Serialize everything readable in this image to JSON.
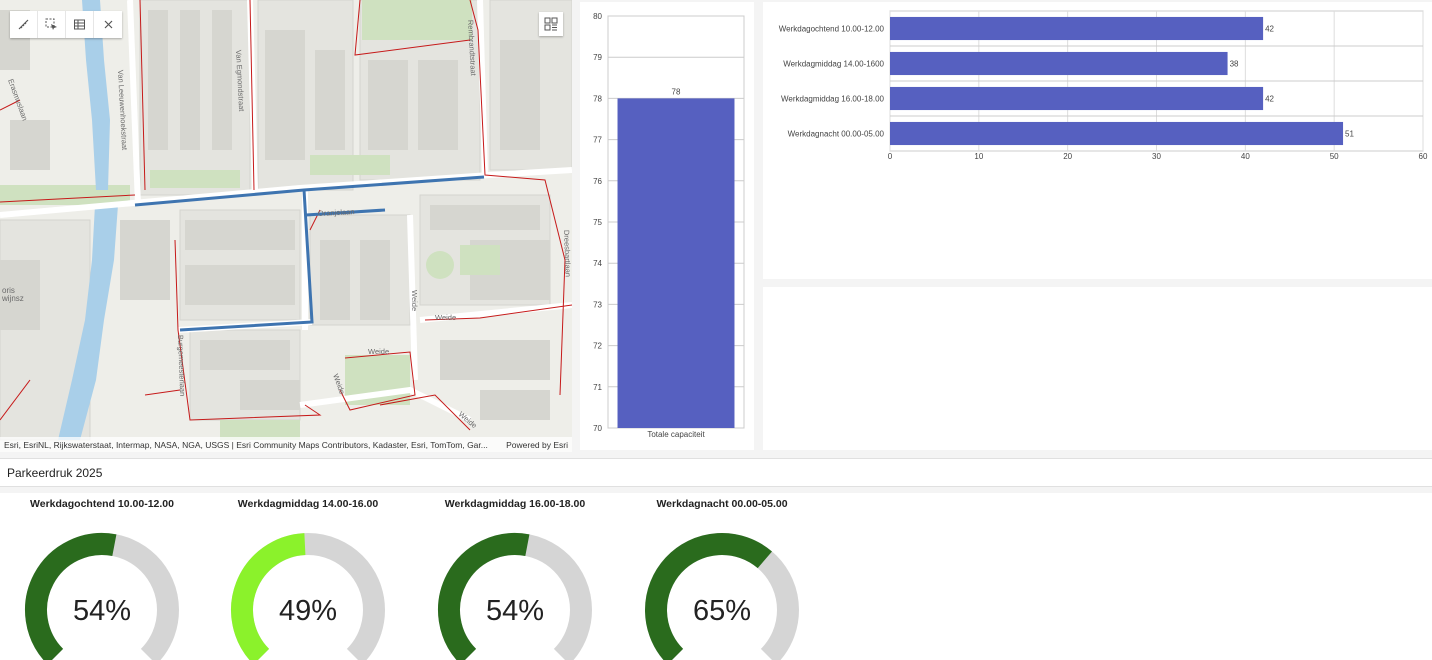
{
  "map": {
    "street_labels": [
      "Van Leeuwenhoekstraat",
      "Van Egmondstraat",
      "Rembrandtstraat",
      "Burgemeesterlaan",
      "Dreesbartlaan",
      "Erasmuslaan",
      "Oranjelaan",
      "Weide",
      "Weide",
      "Weide",
      "Weide",
      "Weide",
      "oris",
      "wijnsz"
    ],
    "tools": {
      "measure_icon": "ruler-icon",
      "select_icon": "select-cursor-icon",
      "table_icon": "table-icon",
      "close_icon": "close-icon",
      "grid_icon": "qr-grid-icon"
    },
    "attribution": "Esri, EsriNL, Rijkswaterstaat, Intermap, NASA, NGA, USGS | Esri Community Maps Contributors, Kadaster, Esri, TomTom, Gar...",
    "powered_by": "Powered by Esri"
  },
  "section": {
    "title": "Parkeerdruk 2025"
  },
  "colors": {
    "bar": "#5660c0",
    "gauge_dark": "#2a6b1d",
    "gauge_light": "#8bf22b",
    "gauge_track": "#d5d5d5"
  },
  "chart_data": [
    {
      "type": "bar",
      "categories": [
        "Totale capaciteit"
      ],
      "values": [
        78
      ],
      "ylim": [
        70,
        80
      ],
      "yticks": [
        70,
        71,
        72,
        73,
        74,
        75,
        76,
        77,
        78,
        79,
        80
      ],
      "data_labels": true,
      "grid": true
    },
    {
      "type": "bar",
      "orientation": "horizontal",
      "categories": [
        "Werkdagochtend 10.00-12.00",
        "Werkdagmiddag 14.00-1600",
        "Werkdagmiddag 16.00-18.00",
        "Werkdagnacht 00.00-05.00"
      ],
      "values": [
        42,
        38,
        42,
        51
      ],
      "xlim": [
        0,
        60
      ],
      "xticks": [
        0,
        10,
        20,
        30,
        40,
        50,
        60
      ],
      "data_labels": true,
      "grid": true
    }
  ],
  "gauges": [
    {
      "title": "Werkdagochtend 10.00-12.00",
      "value": 54,
      "label": "54%",
      "color": "#2a6b1d"
    },
    {
      "title": "Werkdagmiddag 14.00-16.00",
      "value": 49,
      "label": "49%",
      "color": "#8bf22b"
    },
    {
      "title": "Werkdagmiddag 16.00-18.00",
      "value": 54,
      "label": "54%",
      "color": "#2a6b1d"
    },
    {
      "title": "Werkdagnacht 00.00-05.00",
      "value": 65,
      "label": "65%",
      "color": "#2a6b1d"
    }
  ]
}
